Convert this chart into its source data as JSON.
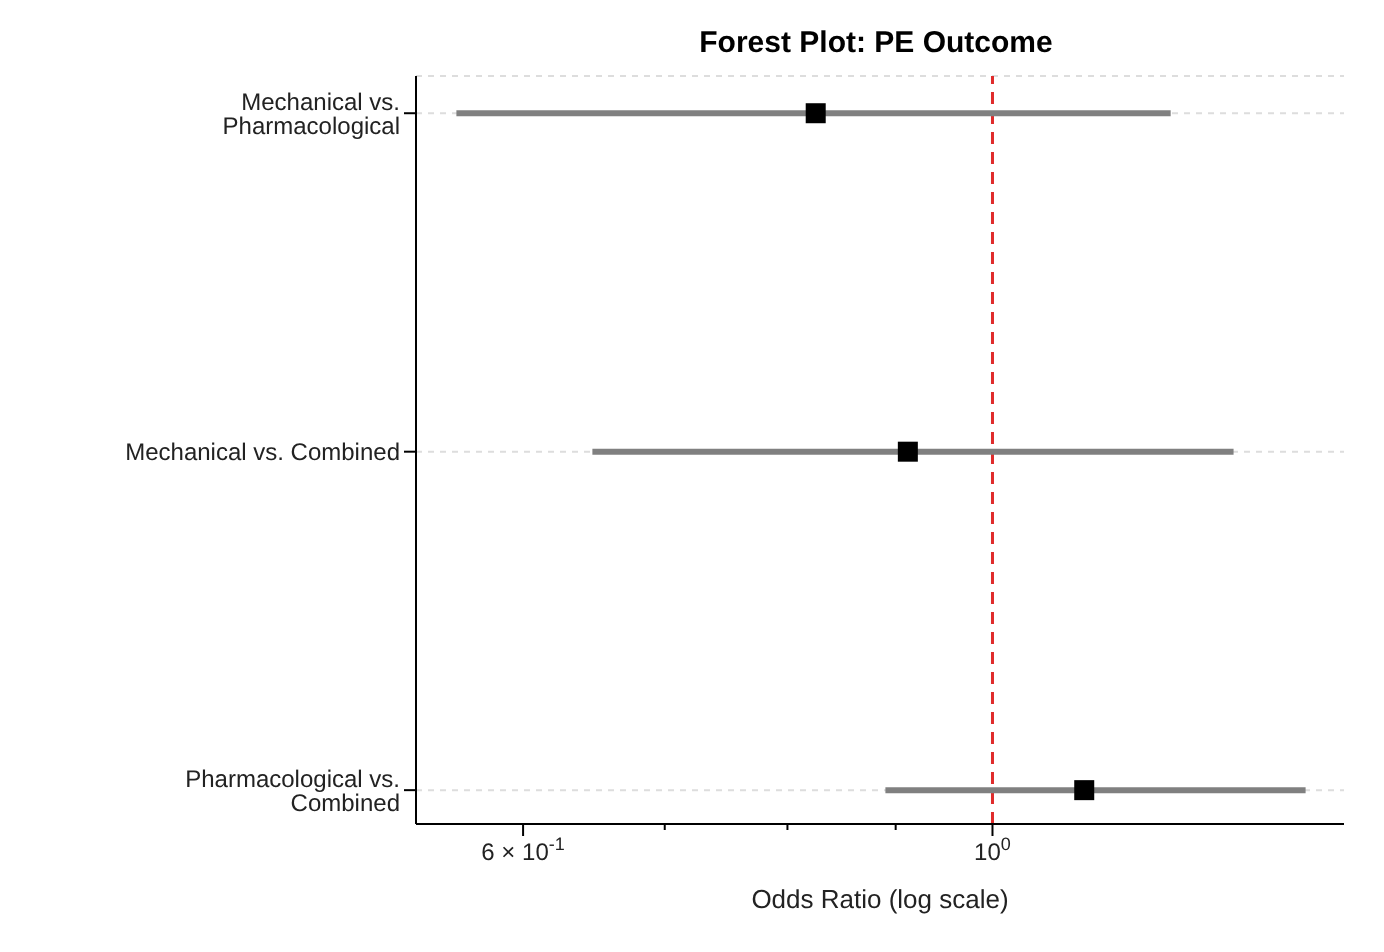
{
  "chart_data": {
    "type": "scatter",
    "orientation": "horizontal",
    "title": "Forest Plot: PE Outcome",
    "xlabel": "Odds Ratio (log scale)",
    "categories": [
      "Mechanical vs. Pharmacological",
      "Mechanical vs. Combined",
      "Pharmacological vs. Combined"
    ],
    "series": [
      {
        "color": "#000000",
        "values": [
          0.825,
          0.912,
          1.105
        ],
        "errors": [
          [
            0.558,
            1.214
          ],
          [
            0.647,
            1.3
          ],
          [
            0.89,
            1.406
          ]
        ]
      }
    ],
    "log": "x",
    "xlim": [
      0.534,
      1.466
    ],
    "xticks": [
      {
        "value": 0.6,
        "label": "6 × 10$^{-1}$"
      },
      {
        "value": 0.7,
        "label": null
      },
      {
        "value": 0.8,
        "label": null
      },
      {
        "value": 0.9,
        "label": null
      },
      {
        "value": 1,
        "label": "10$^{0}$"
      }
    ],
    "ref_lines": [
      {
        "axis": "x",
        "value": 1,
        "color": "#e02b2b",
        "line_style": "dashed"
      }
    ],
    "grid": "y",
    "marker": "square"
  }
}
